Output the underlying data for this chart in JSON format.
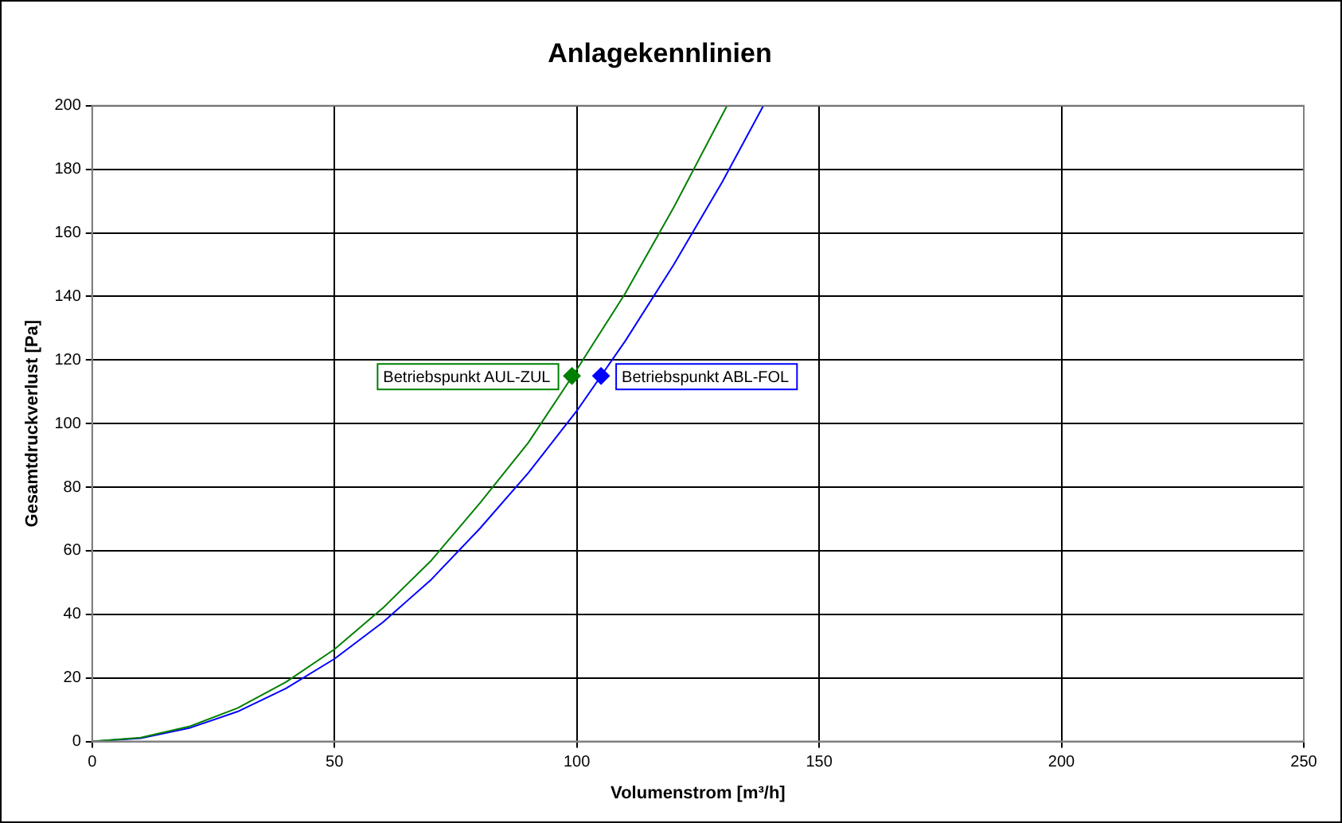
{
  "chart_data": {
    "type": "line",
    "title": "Anlagekennlinien",
    "xlabel": "Volumenstrom [m³/h]",
    "ylabel": "Gesamtdruckverlust [Pa]",
    "xlim": [
      0,
      250
    ],
    "xticks": [
      0,
      50,
      100,
      150,
      200,
      250
    ],
    "ylim": [
      0,
      200
    ],
    "yticks": [
      0,
      20,
      40,
      60,
      80,
      100,
      120,
      140,
      160,
      180,
      200
    ],
    "grid": true,
    "legend": false,
    "series": [
      {
        "type": "line",
        "color": "#008000",
        "marker": "none",
        "x": [
          0,
          10,
          20,
          30,
          40,
          50,
          60,
          70,
          80,
          90,
          100,
          110,
          120,
          131
        ],
        "values": [
          0,
          1.2,
          4.7,
          10.5,
          18.7,
          29,
          42,
          57,
          75,
          94,
          117,
          141,
          168,
          200
        ]
      },
      {
        "type": "line",
        "color": "#0000ff",
        "marker": "none",
        "x": [
          0,
          10,
          20,
          30,
          40,
          50,
          60,
          70,
          80,
          90,
          100,
          110,
          120,
          130,
          138.5
        ],
        "values": [
          0,
          1,
          4.2,
          9.4,
          16.7,
          26,
          37.5,
          51,
          67,
          84.5,
          104,
          126,
          150,
          176,
          200
        ]
      },
      {
        "type": "scatter",
        "name": "Betriebspunkt AUL-ZUL",
        "color": "#008000",
        "marker": "diamond",
        "x": [
          99
        ],
        "values": [
          115
        ]
      },
      {
        "type": "scatter",
        "name": "Betriebspunkt ABL-FOL",
        "color": "#0000ff",
        "marker": "diamond",
        "x": [
          105
        ],
        "values": [
          115
        ]
      }
    ]
  }
}
